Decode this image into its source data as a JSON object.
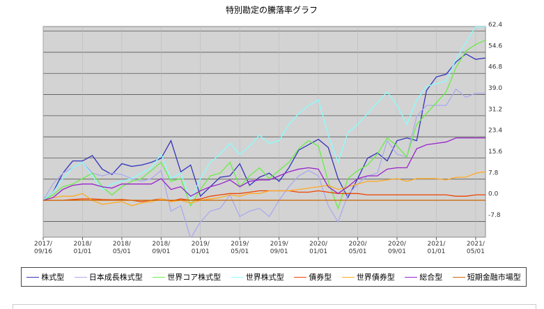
{
  "chart_data": {
    "type": "line",
    "title": "特別勘定の騰落率グラフ",
    "x": [
      0,
      1,
      2,
      3,
      4,
      5,
      6,
      7,
      8,
      9,
      10,
      11,
      12,
      13,
      14,
      15,
      16,
      17,
      18,
      19,
      20,
      21,
      22,
      23,
      24,
      25,
      26,
      27,
      28,
      29,
      30,
      31,
      32,
      33,
      34,
      35,
      36,
      37,
      38,
      39,
      40,
      41,
      42,
      43,
      44,
      45
    ],
    "xlim": [
      0,
      45
    ],
    "xticks": [
      {
        "value": 0,
        "label": "2017/\n09/16"
      },
      {
        "value": 4,
        "label": "2018/\n01/01"
      },
      {
        "value": 8,
        "label": "2018/\n05/01"
      },
      {
        "value": 12,
        "label": "2018/\n09/01"
      },
      {
        "value": 16,
        "label": "2019/\n01/01"
      },
      {
        "value": 20,
        "label": "2019/\n05/01"
      },
      {
        "value": 24,
        "label": "2019/\n09/01"
      },
      {
        "value": 28,
        "label": "2020/\n01/01"
      },
      {
        "value": 32,
        "label": "2020/\n05/01"
      },
      {
        "value": 36,
        "label": "2020/\n09/01"
      },
      {
        "value": 40,
        "label": "2021/\n01/01"
      },
      {
        "value": 44,
        "label": "2021/\n05/01"
      }
    ],
    "ylim": [
      -13.6,
      64.1
    ],
    "yticks": [
      62.4,
      54.6,
      46.8,
      {
        "value": 39.0,
        "label": "39.0"
      },
      31.2,
      23.4,
      15.6,
      7.8,
      {
        "value": 0,
        "label": "0.0"
      },
      -7.8
    ],
    "grid": true,
    "series": [
      {
        "name": "株式型",
        "color": "#3333bb",
        "values": [
          0,
          3,
          10,
          14.5,
          14.5,
          16.5,
          11.5,
          9.5,
          13.5,
          12.5,
          13,
          14,
          15.5,
          22,
          10.5,
          13,
          1.5,
          5,
          8.5,
          9,
          13.5,
          5.5,
          8.5,
          10,
          7,
          12,
          18.5,
          20.5,
          22.5,
          19.5,
          8,
          1,
          8,
          15.5,
          17.5,
          14.5,
          22,
          23,
          22,
          40.5,
          45.5,
          46.5,
          51,
          54,
          52,
          52.5
        ]
      },
      {
        "name": "日本成長株式型",
        "color": "#aaaaee",
        "values": [
          0,
          6,
          10,
          12,
          14,
          10,
          9,
          10,
          9.5,
          8,
          7,
          8,
          11,
          -4,
          -2,
          -14,
          -8,
          -4,
          -3,
          2,
          -6,
          -4,
          -3,
          -6,
          0,
          5,
          9,
          11,
          9,
          -2,
          -8,
          2,
          6,
          9,
          10,
          22,
          17,
          16,
          31,
          35,
          35,
          35,
          41,
          38,
          39.5,
          39.5
        ]
      },
      {
        "name": "世界コア株式型",
        "color": "#66ee44",
        "values": [
          0,
          2,
          5,
          6,
          8,
          10,
          5,
          2,
          5,
          7,
          8,
          11,
          14,
          7,
          8,
          -2,
          4,
          9,
          10,
          14,
          5,
          9,
          12,
          8,
          11,
          14,
          19,
          22,
          20,
          7,
          -3,
          8,
          11,
          13,
          17,
          23,
          20,
          16,
          28,
          32,
          36,
          40,
          49,
          55,
          57.5,
          59
        ]
      },
      {
        "name": "世界株式型",
        "color": "#88ffff",
        "values": [
          0,
          3,
          8,
          12,
          14,
          9,
          4,
          6,
          7,
          8,
          10,
          12,
          17,
          8,
          10,
          0,
          8,
          14,
          17,
          21,
          17,
          20,
          24,
          21,
          22,
          28,
          32,
          35,
          37,
          24,
          14,
          25,
          28,
          32,
          36,
          40,
          35,
          28,
          37,
          42,
          43,
          44,
          52,
          58,
          64,
          64
        ]
      },
      {
        "name": "債券型",
        "color": "#ee4400",
        "values": [
          0,
          0,
          0,
          0.3,
          0.5,
          0.5,
          0.3,
          0.2,
          0.3,
          0,
          -0.5,
          0,
          0.5,
          -0.3,
          0.5,
          0,
          0.5,
          1.5,
          2,
          2.5,
          2.5,
          3,
          3.5,
          3.5,
          3.5,
          3.5,
          3,
          3,
          3.5,
          3,
          2.5,
          2.5,
          2.5,
          2,
          2,
          2,
          2,
          2,
          2,
          2,
          2,
          2,
          1.5,
          1.5,
          2,
          2
        ]
      },
      {
        "name": "世界債券型",
        "color": "#ffaa22",
        "values": [
          0,
          1,
          1.5,
          1.5,
          2.5,
          0,
          -1.5,
          -1,
          -0.5,
          -2,
          -1,
          -0.5,
          0.5,
          -0.5,
          0,
          -1,
          0,
          0.5,
          1,
          2,
          1.5,
          2.5,
          2.5,
          3.5,
          3.5,
          3.5,
          4,
          4.5,
          5,
          5.5,
          4,
          5,
          6,
          7,
          7,
          7.5,
          8,
          7,
          8,
          8,
          8,
          7.5,
          8.5,
          8.5,
          10,
          10.5
        ]
      },
      {
        "name": "総合型",
        "color": "#9922cc",
        "values": [
          0,
          1,
          4,
          5.5,
          6,
          6,
          5,
          4.5,
          6,
          6,
          6,
          6,
          8,
          4,
          5,
          1.5,
          3.5,
          5,
          6,
          7.5,
          5,
          7,
          7.5,
          7.5,
          9,
          10.5,
          11.5,
          12,
          11.5,
          5,
          2.5,
          5,
          8,
          9,
          9,
          11.5,
          12,
          12,
          19,
          20.5,
          21,
          21.5,
          23,
          23,
          23,
          23
        ]
      },
      {
        "name": "短期金融市場型",
        "color": "#cc6600",
        "values": [
          0,
          0,
          0,
          0,
          0,
          0,
          0,
          0,
          0,
          0,
          0,
          0,
          0,
          0,
          0,
          0,
          0,
          0,
          0,
          0,
          0,
          0,
          0,
          0,
          0,
          0,
          0,
          0,
          0,
          0,
          0,
          0,
          0,
          0,
          0,
          0,
          0,
          0,
          0,
          0,
          0,
          0,
          0,
          0,
          0,
          0
        ]
      }
    ]
  }
}
